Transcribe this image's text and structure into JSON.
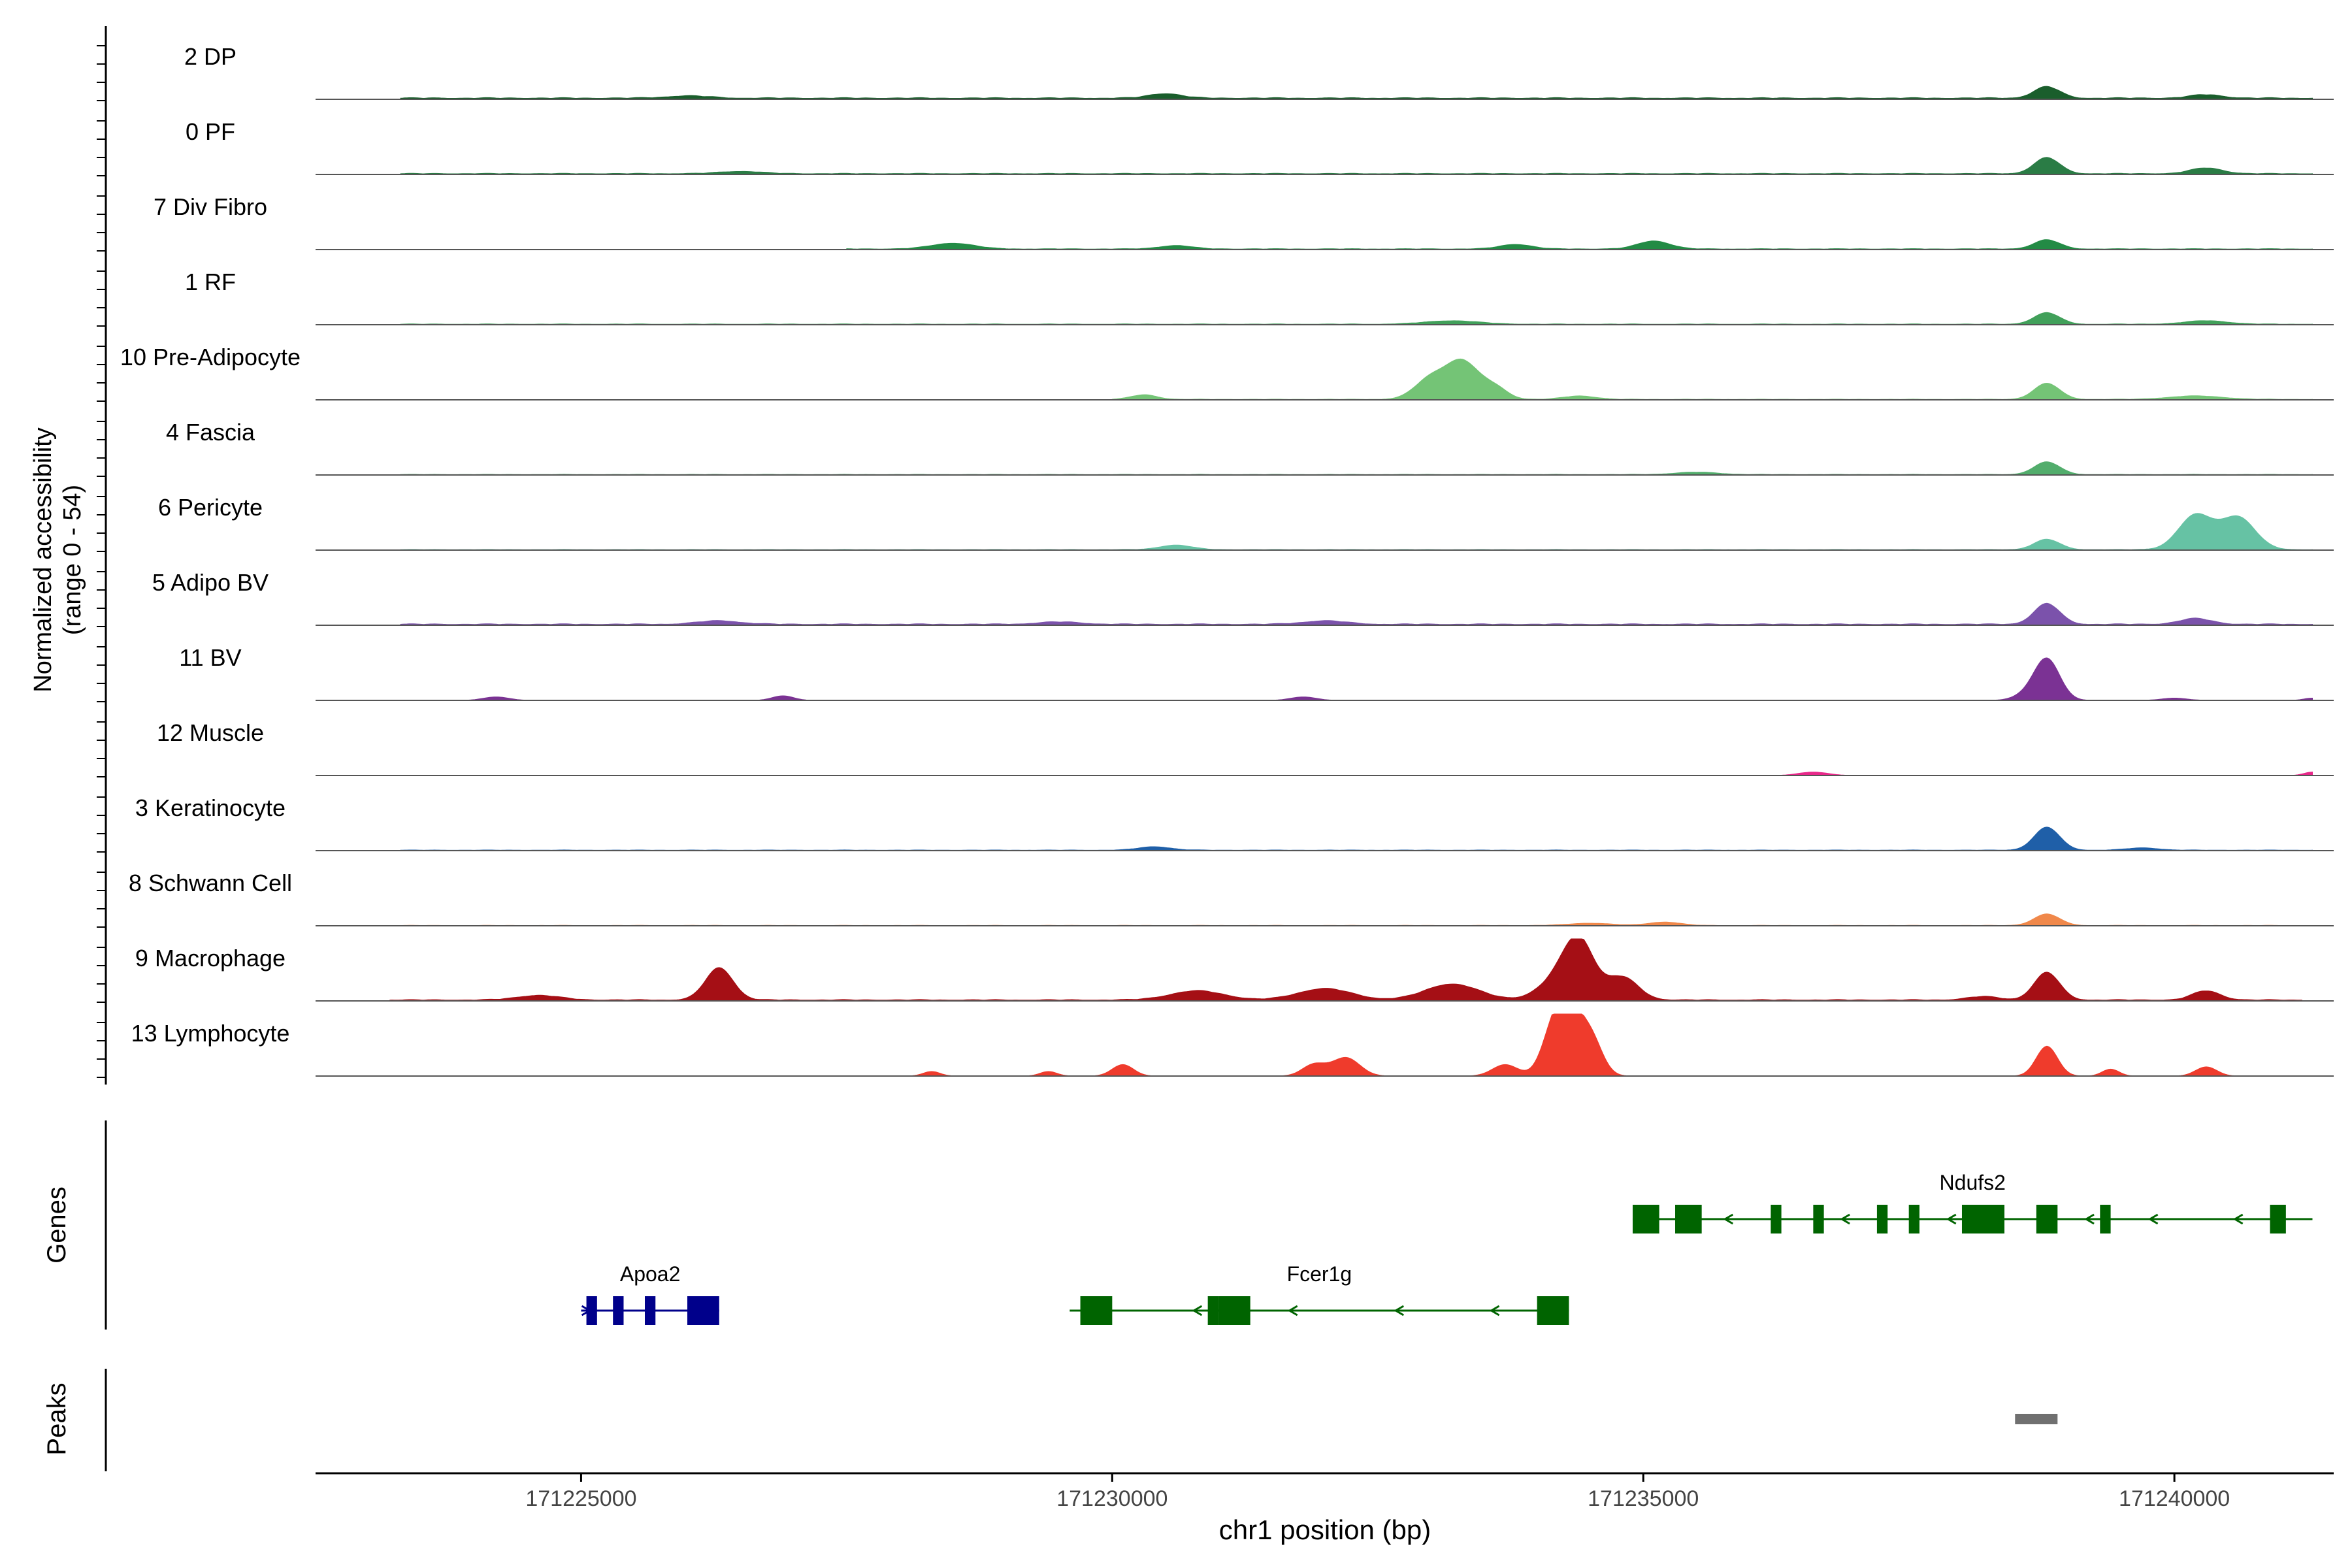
{
  "y_axis_label_line1": "Normalized accessibility",
  "y_axis_label_line2": "(range 0 - 54)",
  "genes_label": "Genes",
  "peaks_label": "Peaks",
  "x_axis_label": "chr1 position (bp)",
  "chart_data": {
    "type": "area",
    "ylim": [
      0,
      54
    ],
    "xlim": [
      171222500,
      171241500
    ],
    "x_ticks": [
      "171225000",
      "171230000",
      "171235000",
      "171240000"
    ],
    "x_tick_values": [
      171225000,
      171230000,
      171235000,
      171240000
    ],
    "tracks": [
      {
        "name": "2 DP",
        "color": "#1a5e2c",
        "baseline": 1.5,
        "start": 171223300,
        "end": 171241300,
        "peaks": [
          [
            171238800,
            10,
            120
          ],
          [
            171230500,
            4,
            150
          ],
          [
            171240300,
            3,
            150
          ],
          [
            171226000,
            2,
            200
          ]
        ]
      },
      {
        "name": "0 PF",
        "color": "#2a7c45",
        "baseline": 1.0,
        "start": 171223300,
        "end": 171241300,
        "peaks": [
          [
            171238800,
            14,
            120
          ],
          [
            171240300,
            5,
            150
          ],
          [
            171226500,
            2,
            200
          ]
        ]
      },
      {
        "name": "7 Div Fibro",
        "color": "#238b45",
        "baseline": 0.8,
        "start": 171227500,
        "end": 171241300,
        "peaks": [
          [
            171238800,
            8,
            120
          ],
          [
            171235100,
            7,
            150
          ],
          [
            171228500,
            5,
            200
          ],
          [
            171233800,
            4,
            150
          ],
          [
            171230600,
            3,
            150
          ]
        ]
      },
      {
        "name": "1 RF",
        "color": "#41a05a",
        "baseline": 0.7,
        "start": 171223300,
        "end": 171241300,
        "peaks": [
          [
            171238800,
            10,
            120
          ],
          [
            171233200,
            3,
            250
          ],
          [
            171240300,
            3,
            200
          ]
        ]
      },
      {
        "name": "10 Pre-Adipocyte",
        "color": "#74c476",
        "baseline": 0.6,
        "start": 171230000,
        "end": 171241300,
        "peaks": [
          [
            171233300,
            32,
            150
          ],
          [
            171233000,
            18,
            150
          ],
          [
            171233600,
            10,
            120
          ],
          [
            171238800,
            14,
            120
          ],
          [
            171230300,
            4,
            120
          ],
          [
            171234400,
            3,
            150
          ],
          [
            171240200,
            3,
            250
          ]
        ]
      },
      {
        "name": "4 Fascia",
        "color": "#52ad6c",
        "baseline": 0.6,
        "start": 171223300,
        "end": 171241300,
        "peaks": [
          [
            171238800,
            11,
            120
          ],
          [
            171235500,
            2,
            200
          ]
        ]
      },
      {
        "name": "6 Pericyte",
        "color": "#66c2a4",
        "baseline": 0.6,
        "start": 171223300,
        "end": 171241300,
        "peaks": [
          [
            171240200,
            30,
            160
          ],
          [
            171240600,
            28,
            160
          ],
          [
            171238800,
            9,
            120
          ],
          [
            171230600,
            4,
            150
          ]
        ]
      },
      {
        "name": "5 Adipo BV",
        "color": "#7b52ab",
        "baseline": 1.3,
        "start": 171223300,
        "end": 171241300,
        "peaks": [
          [
            171238800,
            18,
            120
          ],
          [
            171240200,
            5,
            150
          ],
          [
            171226300,
            3,
            200
          ],
          [
            171232000,
            3,
            200
          ],
          [
            171229500,
            2,
            200
          ]
        ]
      },
      {
        "name": "11 BV",
        "color": "#7b3294",
        "baseline": 0.0,
        "start": 171223300,
        "end": 171241300,
        "peaks": [
          [
            171238800,
            36,
            120
          ],
          [
            171238600,
            4,
            120
          ],
          [
            171226900,
            4,
            100
          ],
          [
            171224200,
            3,
            120
          ],
          [
            171231800,
            3,
            120
          ],
          [
            171240000,
            2,
            120
          ],
          [
            171241300,
            2,
            80
          ]
        ]
      },
      {
        "name": "12 Muscle",
        "color": "#e7298a",
        "baseline": 0.0,
        "start": 171223300,
        "end": 171241300,
        "peaks": [
          [
            171236600,
            3,
            140
          ],
          [
            171241300,
            3,
            80
          ]
        ]
      },
      {
        "name": "3 Keratinocyte",
        "color": "#1f5fa8",
        "baseline": 0.6,
        "start": 171223300,
        "end": 171241300,
        "peaks": [
          [
            171238800,
            20,
            120
          ],
          [
            171230400,
            3,
            150
          ],
          [
            171239700,
            2,
            150
          ]
        ]
      },
      {
        "name": "8 Schwann Cell",
        "color": "#f0884a",
        "baseline": 0.4,
        "start": 171223300,
        "end": 171241300,
        "peaks": [
          [
            171238800,
            10,
            120
          ],
          [
            171235200,
            3,
            150
          ],
          [
            171234500,
            2,
            200
          ]
        ]
      },
      {
        "name": "9 Macrophage",
        "color": "#a50f15",
        "baseline": 1.2,
        "start": 171223200,
        "end": 171241200,
        "peaks": [
          [
            171234400,
            46,
            140
          ],
          [
            171234200,
            18,
            180
          ],
          [
            171234800,
            20,
            150
          ],
          [
            171226300,
            28,
            130
          ],
          [
            171238800,
            24,
            120
          ],
          [
            171233200,
            14,
            250
          ],
          [
            171232000,
            10,
            250
          ],
          [
            171230800,
            8,
            250
          ],
          [
            171240300,
            8,
            130
          ],
          [
            171224600,
            4,
            200
          ],
          [
            171238200,
            3,
            150
          ]
        ]
      },
      {
        "name": "13 Lymphocyte",
        "color": "#ef3b2c",
        "baseline": 0.0,
        "start": 171227800,
        "end": 171240600,
        "peaks": [
          [
            171234300,
            50,
            110
          ],
          [
            171234150,
            36,
            110
          ],
          [
            171234500,
            34,
            110
          ],
          [
            171238800,
            26,
            100
          ],
          [
            171232200,
            16,
            130
          ],
          [
            171231900,
            10,
            110
          ],
          [
            171233700,
            10,
            120
          ],
          [
            171230100,
            10,
            100
          ],
          [
            171228300,
            4,
            80
          ],
          [
            171240300,
            8,
            100
          ],
          [
            171239400,
            6,
            80
          ],
          [
            171229400,
            4,
            80
          ]
        ]
      }
    ],
    "genes": [
      {
        "name": "Apoa2",
        "strand": "+",
        "color": "#00008b",
        "start": 171225000,
        "end": 171226300,
        "row": 2,
        "exons": [
          [
            171225050,
            171225150
          ],
          [
            171225300,
            171225400
          ],
          [
            171225600,
            171225700
          ],
          [
            171226000,
            171226300
          ]
        ],
        "arrows": [
          171225050,
          171226050
        ]
      },
      {
        "name": "Fcer1g",
        "strand": "-",
        "color": "#006400",
        "start": 171229600,
        "end": 171234300,
        "row": 2,
        "exons": [
          [
            171229700,
            171230000
          ],
          [
            171230900,
            171231000
          ],
          [
            171231000,
            171231300
          ],
          [
            171234000,
            171234300
          ]
        ],
        "arrows": [
          171230800,
          171231700,
          171232700,
          171233600
        ]
      },
      {
        "name": "Ndufs2",
        "strand": "-",
        "color": "#006400",
        "start": 171234900,
        "end": 171241300,
        "row": 1,
        "exons": [
          [
            171234900,
            171235150
          ],
          [
            171235300,
            171235550
          ],
          [
            171236200,
            171236300
          ],
          [
            171236600,
            171236700
          ],
          [
            171237200,
            171237300
          ],
          [
            171237500,
            171237600
          ],
          [
            171238000,
            171238400
          ],
          [
            171238700,
            171238900
          ],
          [
            171239300,
            171239400
          ],
          [
            171240900,
            171241050
          ]
        ],
        "arrows": [
          171235800,
          171236900,
          171237900,
          171239200,
          171239800,
          171240600
        ]
      }
    ],
    "peaks": [
      {
        "start": 171238500,
        "end": 171238900
      }
    ]
  }
}
